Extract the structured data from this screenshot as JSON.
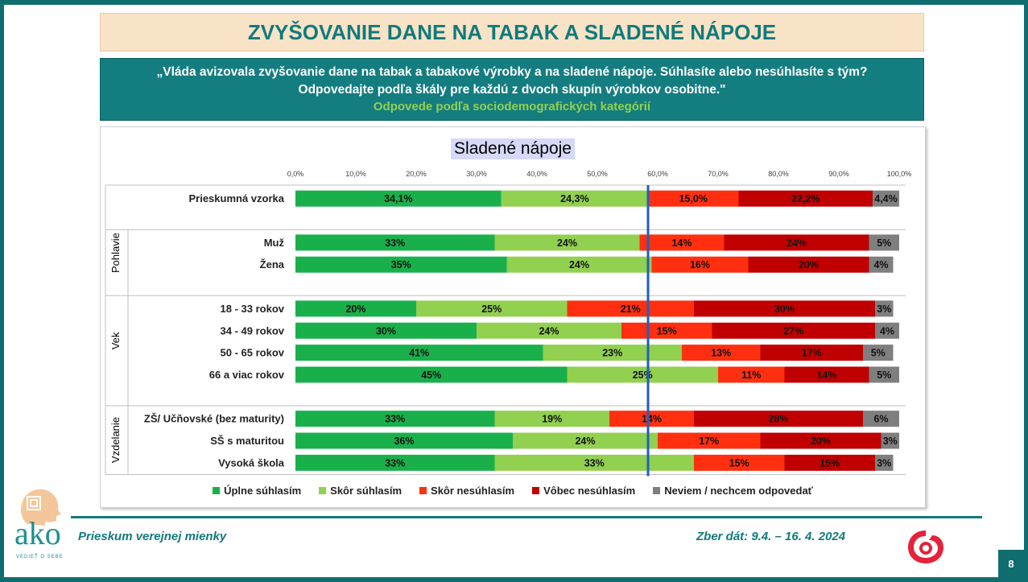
{
  "title": "ZVYŠOVANIE DANE NA TABAK A SLADENÉ NÁPOJE",
  "question": {
    "line1": "„Vláda avizovala zvyšovanie dane na tabak a tabakové výrobky a na sladené nápoje. Súhlasíte alebo nesúhlasíte s tým?",
    "line2": "Odpovedajte podľa škály pre každú z dvoch skupín výrobkov osobitne.\"",
    "subtitle": "Odpovede podľa sociodemografických kategórií"
  },
  "chart_data": {
    "type": "bar",
    "orientation": "horizontal-stacked-100",
    "title": "Sladené nápoje",
    "xlim": [
      0,
      100
    ],
    "x_ticks": [
      "0,0%",
      "10,0%",
      "20,0%",
      "30,0%",
      "40,0%",
      "50,0%",
      "60,0%",
      "70,0%",
      "80,0%",
      "90,0%",
      "100,0%"
    ],
    "legend_position": "bottom",
    "series": [
      {
        "name": "Úplne súhlasím",
        "color": "#19b04b"
      },
      {
        "name": "Skôr súhlasím",
        "color": "#92d050"
      },
      {
        "name": "Skôr nesúhlasím",
        "color": "#ff2f0f"
      },
      {
        "name": "Vôbec nesúhlasím",
        "color": "#c00000"
      },
      {
        "name": "Neviem / nechcem odpovedať",
        "color": "#7f7f7f"
      }
    ],
    "reference_line_value": 58.4,
    "groups": [
      {
        "name": "",
        "rows": [
          {
            "label": "Prieskumná vzorka",
            "values": [
              34.1,
              24.3,
              15.0,
              22.2,
              4.4
            ],
            "labels": [
              "34,1%",
              "24,3%",
              "15,0%",
              "22,2%",
              "4,4%"
            ]
          }
        ]
      },
      {
        "name": "Pohlavie",
        "rows": [
          {
            "label": "Muž",
            "values": [
              33,
              24,
              14,
              24,
              5
            ],
            "labels": [
              "33%",
              "24%",
              "14%",
              "24%",
              "5%"
            ]
          },
          {
            "label": "Žena",
            "values": [
              35,
              24,
              16,
              20,
              4
            ],
            "labels": [
              "35%",
              "24%",
              "16%",
              "20%",
              "4%"
            ]
          }
        ]
      },
      {
        "name": "Vek",
        "rows": [
          {
            "label": "18 - 33 rokov",
            "values": [
              20,
              25,
              21,
              30,
              3
            ],
            "labels": [
              "20%",
              "25%",
              "21%",
              "30%",
              "3%"
            ]
          },
          {
            "label": "34 - 49 rokov",
            "values": [
              30,
              24,
              15,
              27,
              4
            ],
            "labels": [
              "30%",
              "24%",
              "15%",
              "27%",
              "4%"
            ]
          },
          {
            "label": "50 - 65 rokov",
            "values": [
              41,
              23,
              13,
              17,
              5
            ],
            "labels": [
              "41%",
              "23%",
              "13%",
              "17%",
              "5%"
            ]
          },
          {
            "label": "66 a viac rokov",
            "values": [
              45,
              25,
              11,
              14,
              5
            ],
            "labels": [
              "45%",
              "25%",
              "11%",
              "14%",
              "5%"
            ]
          }
        ]
      },
      {
        "name": "Vzdelanie",
        "rows": [
          {
            "label": "ZŠ/ Učňovské (bez maturity)",
            "values": [
              33,
              19,
              14,
              28,
              6
            ],
            "labels": [
              "33%",
              "19%",
              "14%",
              "28%",
              "6%"
            ]
          },
          {
            "label": "SŠ s maturitou",
            "values": [
              36,
              24,
              17,
              20,
              3
            ],
            "labels": [
              "36%",
              "24%",
              "17%",
              "20%",
              "3%"
            ]
          },
          {
            "label": "Vysoká škola",
            "values": [
              33,
              33,
              15,
              15,
              3
            ],
            "labels": [
              "33%",
              "33%",
              "15%",
              "15%",
              "3%"
            ]
          }
        ]
      }
    ]
  },
  "footer": {
    "left": "Prieskum verejnej mienky",
    "right": "Zber dát: 9.4. – 16. 4. 2024",
    "page": "8"
  },
  "logo": {
    "word": "ako",
    "tagline": "VEDIEŤ O SEBE"
  }
}
